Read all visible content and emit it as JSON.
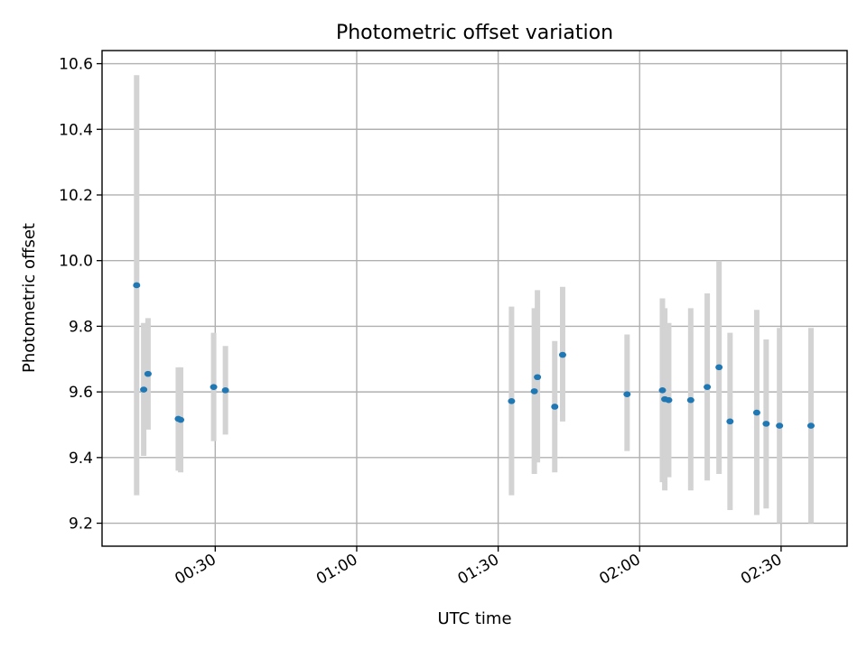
{
  "chart_data": {
    "type": "scatter",
    "title": "Photometric offset variation",
    "xlabel": "UTC time",
    "ylabel": "Photometric offset",
    "grid": true,
    "x_unit": "HH:MM UTC",
    "xlim": [
      "00:06",
      "02:44"
    ],
    "ylim": [
      9.13,
      10.64
    ],
    "xticks": [
      "00:30",
      "01:00",
      "01:30",
      "02:00",
      "02:30"
    ],
    "yticks": [
      "9.2",
      "9.4",
      "9.6",
      "9.8",
      "10.0",
      "10.2",
      "10.4",
      "10.6"
    ],
    "point_color": "#1f77b4",
    "errorbar_color": "#d3d3d3",
    "points": [
      {
        "x": "00:13:20",
        "y": 9.925,
        "ymin": 9.285,
        "ymax": 10.565
      },
      {
        "x": "00:14:50",
        "y": 9.607,
        "ymin": 9.405,
        "ymax": 9.81
      },
      {
        "x": "00:15:45",
        "y": 9.655,
        "ymin": 9.485,
        "ymax": 9.825
      },
      {
        "x": "00:22:10",
        "y": 9.518,
        "ymin": 9.36,
        "ymax": 9.675
      },
      {
        "x": "00:22:40",
        "y": 9.515,
        "ymin": 9.355,
        "ymax": 9.675
      },
      {
        "x": "00:29:40",
        "y": 9.615,
        "ymin": 9.45,
        "ymax": 9.78
      },
      {
        "x": "00:32:10",
        "y": 9.605,
        "ymin": 9.47,
        "ymax": 9.74
      },
      {
        "x": "01:32:50",
        "y": 9.572,
        "ymin": 9.285,
        "ymax": 9.86
      },
      {
        "x": "01:37:40",
        "y": 9.602,
        "ymin": 9.35,
        "ymax": 9.855
      },
      {
        "x": "01:38:20",
        "y": 9.645,
        "ymin": 9.385,
        "ymax": 9.91
      },
      {
        "x": "01:42:00",
        "y": 9.555,
        "ymin": 9.355,
        "ymax": 9.755
      },
      {
        "x": "01:43:40",
        "y": 9.713,
        "ymin": 9.51,
        "ymax": 9.92
      },
      {
        "x": "01:57:20",
        "y": 9.593,
        "ymin": 9.42,
        "ymax": 9.775
      },
      {
        "x": "02:04:50",
        "y": 9.605,
        "ymin": 9.325,
        "ymax": 9.885
      },
      {
        "x": "02:05:20",
        "y": 9.578,
        "ymin": 9.3,
        "ymax": 9.855
      },
      {
        "x": "02:06:10",
        "y": 9.575,
        "ymin": 9.34,
        "ymax": 9.81
      },
      {
        "x": "02:10:50",
        "y": 9.575,
        "ymin": 9.3,
        "ymax": 9.855
      },
      {
        "x": "02:14:20",
        "y": 9.615,
        "ymin": 9.33,
        "ymax": 9.9
      },
      {
        "x": "02:16:50",
        "y": 9.675,
        "ymin": 9.35,
        "ymax": 10.0
      },
      {
        "x": "02:19:10",
        "y": 9.51,
        "ymin": 9.24,
        "ymax": 9.78
      },
      {
        "x": "02:24:50",
        "y": 9.537,
        "ymin": 9.225,
        "ymax": 9.85
      },
      {
        "x": "02:26:50",
        "y": 9.503,
        "ymin": 9.245,
        "ymax": 9.76
      },
      {
        "x": "02:29:40",
        "y": 9.497,
        "ymin": 9.2,
        "ymax": 9.795
      },
      {
        "x": "02:36:20",
        "y": 9.497,
        "ymin": 9.2,
        "ymax": 9.795
      }
    ]
  }
}
